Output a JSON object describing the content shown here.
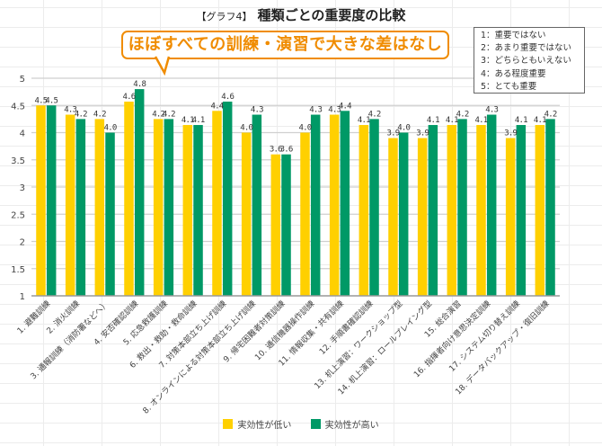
{
  "title": {
    "tag": "【グラフ4】",
    "main": "種類ごとの重要度の比較"
  },
  "callout": {
    "text": "ほぼすべての訓練・演習で大きな差はなし",
    "color": "#f08c00"
  },
  "scale_legend": [
    "1：重要ではない",
    "2：あまり重要ではない",
    "3：どちらともいえない",
    "4：ある程度重要",
    "5：とても重要"
  ],
  "chart_data": {
    "type": "bar",
    "title": "種類ごとの重要度の比較",
    "xlabel": "",
    "ylabel": "",
    "ylim": [
      1,
      5
    ],
    "yticks": [
      1,
      1.5,
      2,
      2.5,
      3,
      3.5,
      4,
      4.5,
      5
    ],
    "grid": true,
    "legend_position": "bottom",
    "categories": [
      "1. 避難訓練",
      "2. 消火訓練",
      "3. 通報訓練（消防署などへ）",
      "4. 安否確認訓練",
      "5. 応急救護訓練",
      "6. 救出・救助・救命訓練",
      "7. 対策本部立ち上げ訓練",
      "8. オンラインによる対策本部立ち上げ訓練",
      "9. 帰宅困難者対策訓練",
      "10. 通信機器操作訓練",
      "11. 情報収集・共有訓練",
      "12. 手順書確認訓練",
      "13. 机上演習：ワークショップ型",
      "14. 机上演習：ロールプレイング型",
      "15. 総合演習",
      "16. 指揮者向け意思決定訓練",
      "17. システム切り替え訓練",
      "18. データバックアップ・復旧訓練"
    ],
    "series": [
      {
        "name": "実効性が低い",
        "color": "#ffd000",
        "values": [
          4.5,
          4.33,
          4.25,
          4.57,
          4.25,
          4.14,
          4.4,
          4.0,
          3.6,
          4.0,
          4.33,
          4.14,
          3.9,
          3.9,
          4.14,
          4.14,
          3.9,
          4.14
        ],
        "labels": [
          "4.5",
          "4.3",
          "4.2",
          "4.6",
          "4.2",
          "4.1",
          "4.4",
          "4.0",
          "3.6",
          "4.0",
          "4.3",
          "4.1",
          "3.9",
          "3.9",
          "4.1",
          "4.1",
          "3.9",
          "4.1"
        ]
      },
      {
        "name": "実効性が高い",
        "color": "#009966",
        "values": [
          4.5,
          4.25,
          4.0,
          4.8,
          4.25,
          4.14,
          4.57,
          4.33,
          3.6,
          4.33,
          4.4,
          4.25,
          4.0,
          4.14,
          4.25,
          4.33,
          4.14,
          4.25
        ],
        "labels": [
          "4.5",
          "4.2",
          "4.0",
          "4.8",
          "4.2",
          "4.1",
          "4.6",
          "4.3",
          "3.6",
          "4.3",
          "4.4",
          "4.2",
          "4.0",
          "4.1",
          "4.2",
          "4.3",
          "4.1",
          "4.2"
        ]
      }
    ]
  }
}
